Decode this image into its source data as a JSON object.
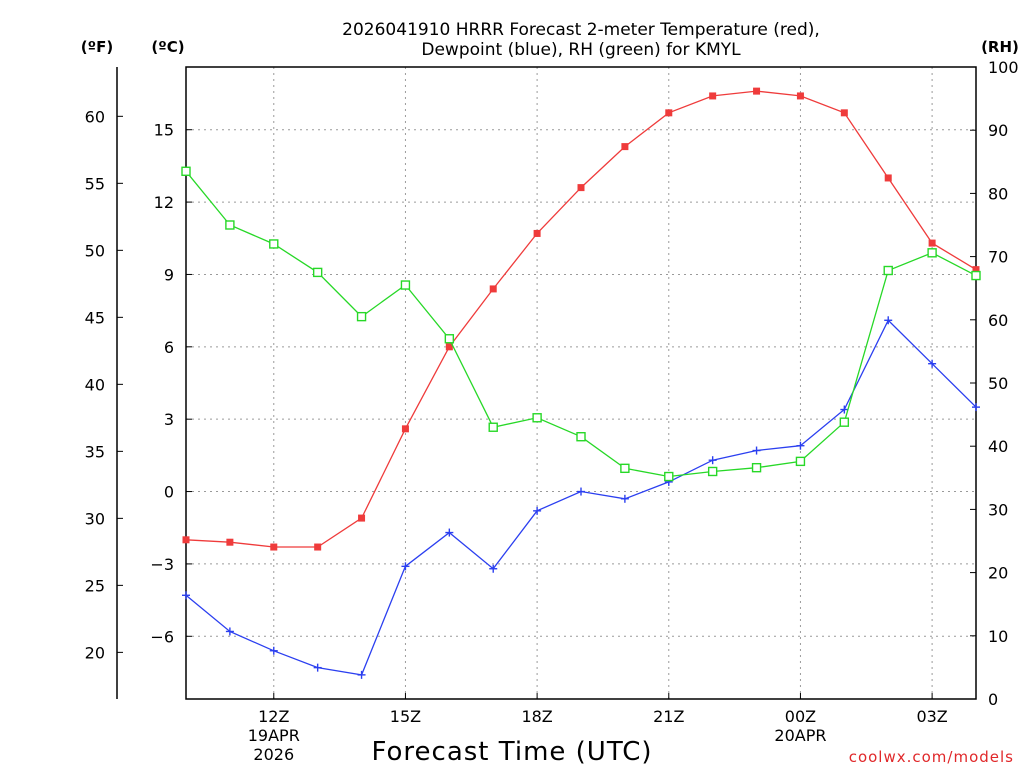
{
  "chart_data": {
    "type": "line",
    "title_line1": "2026041910 HRRR Forecast 2-meter Temperature (red),",
    "title_line2": "Dewpoint (blue), RH (green) for KMYL",
    "xlabel": "Forecast Time (UTC)",
    "credit": "coolwx.com/models",
    "units": {
      "fahrenheit": "(ºF)",
      "celsius": "(ºC)",
      "rh": "(RH)"
    },
    "x_hours": [
      10,
      11,
      12,
      13,
      14,
      15,
      16,
      17,
      18,
      19,
      20,
      21,
      22,
      23,
      24,
      25,
      26,
      27,
      28
    ],
    "xlim": [
      10,
      28
    ],
    "x_ticks": [
      {
        "hour": 12,
        "line1": "12Z",
        "line2": "19APR",
        "line3": "2026"
      },
      {
        "hour": 15,
        "line1": "15Z",
        "line2": "",
        "line3": ""
      },
      {
        "hour": 18,
        "line1": "18Z",
        "line2": "",
        "line3": ""
      },
      {
        "hour": 21,
        "line1": "21Z",
        "line2": "",
        "line3": ""
      },
      {
        "hour": 24,
        "line1": "00Z",
        "line2": "20APR",
        "line3": ""
      },
      {
        "hour": 27,
        "line1": "03Z",
        "line2": "",
        "line3": ""
      }
    ],
    "x_grid_hours": [
      12,
      15,
      18,
      21,
      24,
      27
    ],
    "celsius_axis": {
      "ylim": [
        -8.6,
        17.6
      ],
      "ticks": [
        15,
        12,
        9,
        6,
        3,
        0,
        -3,
        -6
      ],
      "tick_labels": [
        "15",
        "12",
        "9",
        "6",
        "3",
        "0",
        "−3",
        "−6"
      ]
    },
    "fahrenheit_axis": {
      "ticks": [
        60,
        55,
        50,
        45,
        40,
        35,
        30,
        25,
        20
      ],
      "tick_labels": [
        "60",
        "55",
        "50",
        "45",
        "40",
        "35",
        "30",
        "25",
        "20"
      ]
    },
    "rh_axis": {
      "ylim": [
        0,
        100
      ],
      "ticks": [
        100,
        90,
        80,
        70,
        60,
        50,
        40,
        30,
        20,
        10,
        0
      ],
      "tick_labels": [
        "100",
        "90",
        "80",
        "70",
        "60",
        "50",
        "40",
        "30",
        "20",
        "10",
        "0"
      ]
    },
    "series": [
      {
        "name": "Temperature",
        "axis": "celsius",
        "color": "#ef3b3b",
        "marker": "filled-square",
        "values": [
          -2.0,
          -2.1,
          -2.3,
          -2.3,
          -1.1,
          2.6,
          6.0,
          8.4,
          10.7,
          12.6,
          14.3,
          15.7,
          16.4,
          16.6,
          16.4,
          15.7,
          13.0,
          10.3,
          9.2
        ]
      },
      {
        "name": "Dewpoint",
        "axis": "celsius",
        "color": "#2b3ff0",
        "marker": "plus",
        "values": [
          -4.3,
          -5.8,
          -6.6,
          -7.3,
          -7.6,
          -3.1,
          -1.7,
          -3.2,
          -0.8,
          0.0,
          -0.3,
          0.4,
          1.3,
          1.7,
          1.9,
          3.4,
          7.1,
          5.3,
          3.5
        ]
      },
      {
        "name": "RH",
        "axis": "rh",
        "color": "#27d827",
        "marker": "open-square",
        "values": [
          83.5,
          75.0,
          72.0,
          67.5,
          60.5,
          65.5,
          57.0,
          43.0,
          44.5,
          41.5,
          36.5,
          35.2,
          36.0,
          36.6,
          37.6,
          43.8,
          67.8,
          70.6,
          67.0
        ]
      }
    ]
  }
}
